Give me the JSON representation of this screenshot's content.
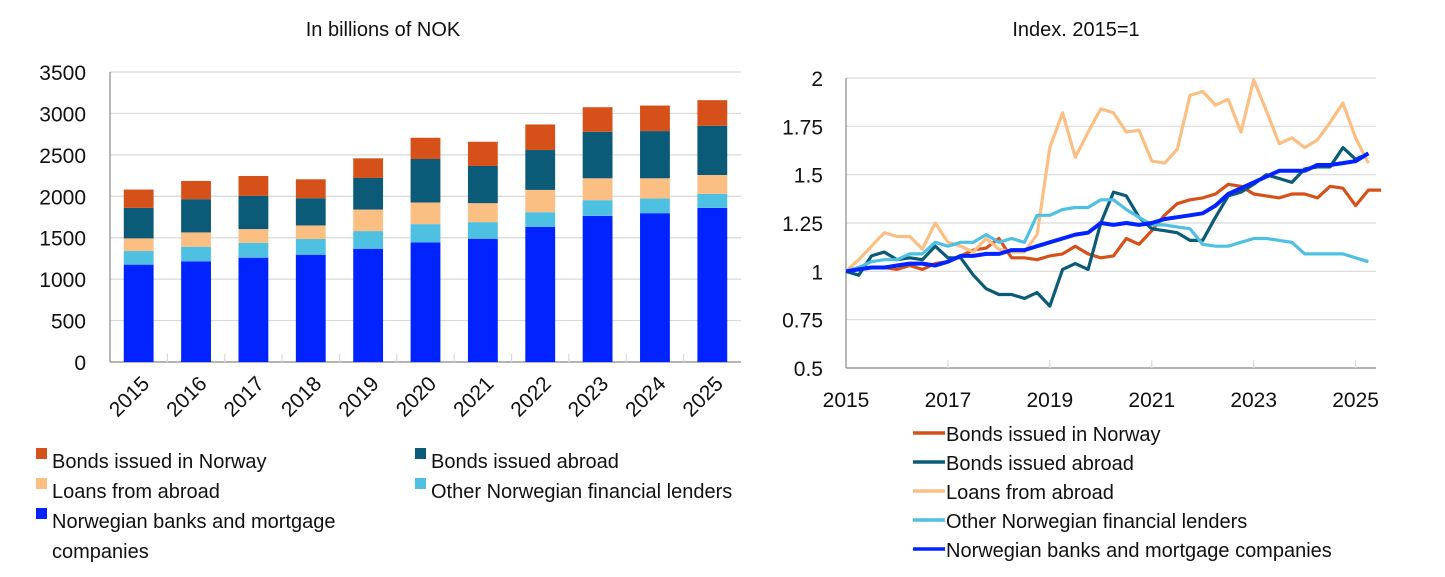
{
  "chart_data": [
    {
      "type": "bar",
      "stacked": true,
      "title": "In billions of NOK",
      "categories": [
        "2015",
        "2016",
        "2017",
        "2018",
        "2019",
        "2020",
        "2021",
        "2022",
        "2023",
        "2024",
        "2025"
      ],
      "ylim": [
        0,
        3500
      ],
      "yticks": [
        0,
        500,
        1000,
        1500,
        2000,
        2500,
        3000,
        3500
      ],
      "grid": true,
      "legend_position": "bottom",
      "series": [
        {
          "name": "Norwegian banks and mortgage companies",
          "color": "#0023ff",
          "values": [
            1175,
            1215,
            1259,
            1295,
            1367,
            1443,
            1488,
            1632,
            1764,
            1796,
            1860
          ]
        },
        {
          "name": "Other Norwegian financial lenders",
          "color": "#4ec0e2",
          "values": [
            164,
            176,
            180,
            189,
            213,
            221,
            200,
            176,
            189,
            177,
            169
          ]
        },
        {
          "name": "Loans from abroad",
          "color": "#fcbf83",
          "values": [
            153,
            173,
            165,
            164,
            260,
            261,
            229,
            269,
            264,
            244,
            228
          ]
        },
        {
          "name": "Bonds issued abroad",
          "color": "#0a5a78",
          "values": [
            368,
            401,
            401,
            329,
            381,
            525,
            449,
            481,
            562,
            570,
            594
          ]
        },
        {
          "name": "Bonds issued in Norway",
          "color": "#d65119",
          "values": [
            221,
            220,
            240,
            228,
            237,
            256,
            292,
            309,
            296,
            308,
            309
          ]
        }
      ],
      "legend_order": [
        "Bonds issued in Norway",
        "Bonds issued abroad",
        "Loans from abroad",
        "Other Norwegian financial lenders",
        "Norwegian banks and mortgage companies"
      ],
      "legend_lines": [
        [
          "Bonds issued in Norway"
        ],
        [
          "Bonds issued abroad"
        ],
        [
          "Loans from abroad"
        ],
        [
          "Other Norwegian financial lenders"
        ],
        [
          "Norwegian banks and mortgage",
          "companies"
        ]
      ]
    },
    {
      "type": "line",
      "title": "Index. 2015=1",
      "x_start": "2015Q1",
      "x_frequency": "quarterly",
      "xlim": [
        2015,
        2025.4
      ],
      "xticks": [
        "2015",
        "2017",
        "2019",
        "2021",
        "2023",
        "2025"
      ],
      "ylim": [
        0.5,
        2
      ],
      "yticks": [
        "0.5",
        "0.75",
        "1",
        "1.25",
        "1.5",
        "1.75",
        "2"
      ],
      "grid": true,
      "legend_position": "bottom",
      "series": [
        {
          "name": "Bonds issued in Norway",
          "color": "#d65119",
          "values": [
            1.0,
            1.02,
            1.02,
            1.02,
            1.01,
            1.03,
            1.01,
            1.04,
            1.05,
            1.08,
            1.11,
            1.12,
            1.17,
            1.07,
            1.07,
            1.06,
            1.08,
            1.09,
            1.13,
            1.09,
            1.07,
            1.08,
            1.17,
            1.14,
            1.21,
            1.29,
            1.35,
            1.37,
            1.38,
            1.4,
            1.45,
            1.44,
            1.4,
            1.39,
            1.38,
            1.4,
            1.4,
            1.38,
            1.44,
            1.43,
            1.34,
            1.42,
            1.42
          ]
        },
        {
          "name": "Bonds issued abroad",
          "color": "#0a5a78",
          "values": [
            1.0,
            0.98,
            1.08,
            1.1,
            1.06,
            1.07,
            1.06,
            1.13,
            1.07,
            1.07,
            0.98,
            0.91,
            0.88,
            0.88,
            0.86,
            0.89,
            0.82,
            1.01,
            1.04,
            1.01,
            1.25,
            1.41,
            1.39,
            1.28,
            1.22,
            1.21,
            1.2,
            1.16,
            1.16,
            1.28,
            1.39,
            1.41,
            1.45,
            1.5,
            1.48,
            1.46,
            1.53,
            1.54,
            1.54,
            1.64,
            1.58,
            1.61
          ]
        },
        {
          "name": "Loans from abroad",
          "color": "#fcbf83",
          "values": [
            1.0,
            1.06,
            1.13,
            1.2,
            1.18,
            1.18,
            1.115,
            1.25,
            1.15,
            1.13,
            1.1,
            1.17,
            1.115,
            1.1,
            1.1,
            1.19,
            1.64,
            1.82,
            1.59,
            1.72,
            1.84,
            1.82,
            1.72,
            1.73,
            1.57,
            1.56,
            1.63,
            1.91,
            1.93,
            1.86,
            1.89,
            1.72,
            1.99,
            1.83,
            1.66,
            1.69,
            1.64,
            1.68,
            1.77,
            1.87,
            1.69,
            1.56
          ]
        },
        {
          "name": "Other Norwegian financial lenders",
          "color": "#4ec0e2",
          "values": [
            1.0,
            1.02,
            1.05,
            1.06,
            1.06,
            1.09,
            1.09,
            1.15,
            1.13,
            1.15,
            1.15,
            1.19,
            1.15,
            1.17,
            1.15,
            1.29,
            1.29,
            1.32,
            1.33,
            1.33,
            1.37,
            1.37,
            1.32,
            1.28,
            1.24,
            1.24,
            1.23,
            1.22,
            1.14,
            1.13,
            1.13,
            1.15,
            1.17,
            1.17,
            1.16,
            1.15,
            1.09,
            1.09,
            1.09,
            1.09,
            1.07,
            1.05
          ]
        },
        {
          "name": "Norwegian banks and mortgage companies",
          "color": "#0023ff",
          "values": [
            1.0,
            1.01,
            1.02,
            1.02,
            1.03,
            1.04,
            1.04,
            1.03,
            1.05,
            1.08,
            1.08,
            1.09,
            1.09,
            1.11,
            1.11,
            1.13,
            1.15,
            1.17,
            1.19,
            1.2,
            1.25,
            1.24,
            1.25,
            1.24,
            1.25,
            1.27,
            1.28,
            1.29,
            1.3,
            1.34,
            1.4,
            1.43,
            1.46,
            1.49,
            1.52,
            1.52,
            1.52,
            1.55,
            1.55,
            1.56,
            1.57,
            1.61
          ]
        }
      ]
    }
  ]
}
